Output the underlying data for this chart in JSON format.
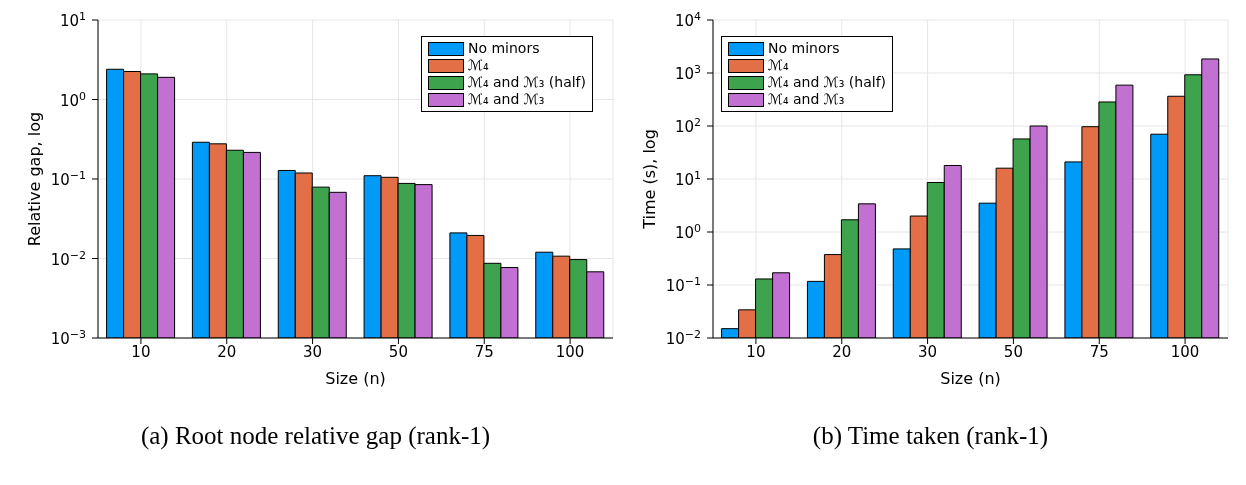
{
  "chart_data": [
    {
      "type": "bar",
      "title": "(a) Root node relative gap (rank-1)",
      "xlabel": "Size (n)",
      "ylabel": "Relative gap, log",
      "categories": [
        "10",
        "20",
        "30",
        "50",
        "75",
        "100"
      ],
      "log": true,
      "grid": true,
      "legend": "top right",
      "ylim": [
        0.001,
        10
      ],
      "yticks": [
        {
          "value": 0.001,
          "label": "10$^{−3}$"
        },
        {
          "value": 0.01,
          "label": "10$^{−2}$"
        },
        {
          "value": 0.1,
          "label": "10$^{−1}$"
        },
        {
          "value": 1,
          "label": "10$^{0}$"
        },
        {
          "value": 10,
          "label": "10$^{1}$"
        }
      ],
      "series": [
        {
          "name": "No minors",
          "color": "#009af9",
          "values": [
            2.4,
            0.29,
            0.128,
            0.11,
            0.021,
            0.012
          ]
        },
        {
          "name": "ℳ₄",
          "color": "#e26f46",
          "values": [
            2.25,
            0.277,
            0.119,
            0.105,
            0.0195,
            0.0107
          ]
        },
        {
          "name": "ℳ₄ and ℳ₃ (half)",
          "color": "#3da44d",
          "values": [
            2.1,
            0.23,
            0.079,
            0.088,
            0.0087,
            0.0097
          ]
        },
        {
          "name": "ℳ₄ and ℳ₃",
          "color": "#c271d2",
          "values": [
            1.9,
            0.216,
            0.068,
            0.085,
            0.0077,
            0.0068
          ]
        }
      ]
    },
    {
      "type": "bar",
      "title": "(b) Time taken (rank-1)",
      "xlabel": "Size (n)",
      "ylabel": "Time (s), log",
      "categories": [
        "10",
        "20",
        "30",
        "50",
        "75",
        "100"
      ],
      "log": true,
      "grid": true,
      "legend": "top left",
      "ylim": [
        0.01,
        10000
      ],
      "yticks": [
        {
          "value": 0.01,
          "label": "10$^{−2}$"
        },
        {
          "value": 0.1,
          "label": "10$^{−1}$"
        },
        {
          "value": 1,
          "label": "10$^{0}$"
        },
        {
          "value": 10,
          "label": "10$^{1}$"
        },
        {
          "value": 100,
          "label": "10$^{2}$"
        },
        {
          "value": 1000,
          "label": "10$^{3}$"
        },
        {
          "value": 10000,
          "label": "10$^{4}$"
        }
      ],
      "series": [
        {
          "name": "No minors",
          "color": "#009af9",
          "values": [
            0.015,
            0.117,
            0.48,
            3.5,
            21,
            70
          ]
        },
        {
          "name": "ℳ₄",
          "color": "#e26f46",
          "values": [
            0.034,
            0.375,
            2.0,
            16,
            97,
            364
          ]
        },
        {
          "name": "ℳ₄ and ℳ₃ (half)",
          "color": "#3da44d",
          "values": [
            0.13,
            1.7,
            8.6,
            57,
            284,
            925
          ]
        },
        {
          "name": "ℳ₄ and ℳ₃",
          "color": "#c271d2",
          "values": [
            0.17,
            3.4,
            18,
            100,
            590,
            1840
          ]
        }
      ]
    }
  ]
}
